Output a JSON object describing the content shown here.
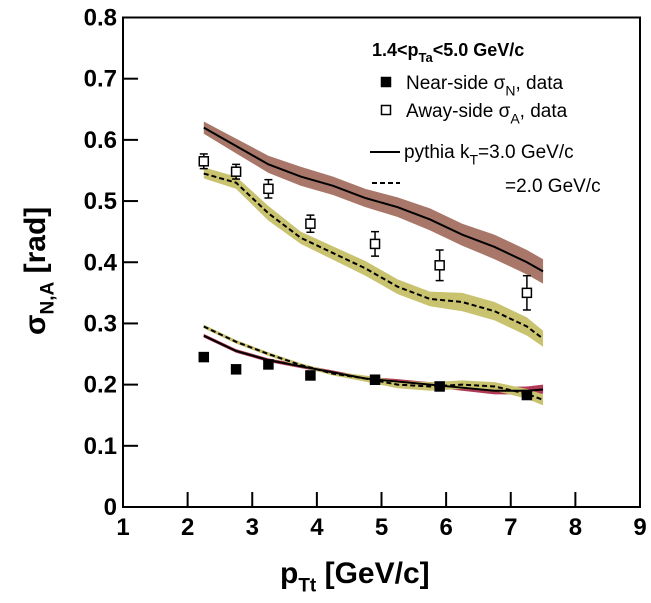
{
  "chart_data": {
    "type": "scatter",
    "x_title": [
      "p",
      "Tt",
      "  [GeV/c]"
    ],
    "y_title": [
      "σ",
      "N,A",
      "   [rad]"
    ],
    "xlim": [
      1,
      9
    ],
    "xticks": [
      1,
      2,
      3,
      4,
      5,
      6,
      7,
      8,
      9
    ],
    "ylim": [
      0,
      0.8
    ],
    "yticks": [
      0,
      0.1,
      0.2,
      0.3,
      0.4,
      0.5,
      0.6,
      0.7,
      0.8
    ],
    "legend_title": [
      "1.4<p",
      "Ta",
      "<5.0 GeV/c"
    ],
    "series": [
      {
        "name": [
          "Near-side  σ",
          "N",
          ", data"
        ],
        "marker": "filled-square",
        "color": "#000000",
        "x": [
          2.25,
          2.75,
          3.25,
          3.9,
          4.9,
          5.9,
          7.25
        ],
        "values": [
          0.245,
          0.225,
          0.233,
          0.215,
          0.208,
          0.197,
          0.183
        ]
      },
      {
        "name": [
          "Away-side  σ",
          "A",
          ", data"
        ],
        "marker": "open-square",
        "color": "#000000",
        "x": [
          2.25,
          2.75,
          3.25,
          3.9,
          4.9,
          5.9,
          7.25
        ],
        "values": [
          0.565,
          0.548,
          0.52,
          0.463,
          0.43,
          0.395,
          0.35
        ],
        "errors": [
          0.012,
          0.012,
          0.015,
          0.014,
          0.02,
          0.025,
          0.028
        ]
      }
    ],
    "model_legend": [
      {
        "name": [
          "pythia k",
          "T",
          "=3.0 GeV/c"
        ],
        "style": "solid"
      },
      {
        "name": [
          "=2.0 GeV/c"
        ],
        "style": "dashed"
      }
    ],
    "model_x": [
      2.25,
      2.75,
      3.25,
      3.75,
      4.25,
      4.75,
      5.25,
      5.75,
      6.25,
      6.75,
      7.25,
      7.5
    ],
    "models": [
      {
        "style": "solid",
        "band_color": "#a8776a",
        "values": [
          0.62,
          0.59,
          0.56,
          0.54,
          0.525,
          0.505,
          0.49,
          0.47,
          0.445,
          0.425,
          0.4,
          0.385
        ],
        "lower": [
          0.61,
          0.578,
          0.546,
          0.525,
          0.51,
          0.49,
          0.474,
          0.452,
          0.427,
          0.405,
          0.38,
          0.365
        ],
        "upper": [
          0.63,
          0.602,
          0.574,
          0.556,
          0.54,
          0.52,
          0.506,
          0.488,
          0.463,
          0.445,
          0.42,
          0.405
        ]
      },
      {
        "style": "dashed",
        "band_color": "#c9c26e",
        "values": [
          0.545,
          0.53,
          0.48,
          0.44,
          0.415,
          0.39,
          0.36,
          0.34,
          0.335,
          0.32,
          0.295,
          0.275
        ],
        "lower": [
          0.537,
          0.52,
          0.468,
          0.43,
          0.404,
          0.378,
          0.348,
          0.328,
          0.32,
          0.305,
          0.28,
          0.262
        ],
        "upper": [
          0.555,
          0.54,
          0.492,
          0.45,
          0.426,
          0.402,
          0.372,
          0.352,
          0.35,
          0.335,
          0.31,
          0.288
        ]
      },
      {
        "style": "solid",
        "band_color": "#b03a55",
        "values": [
          0.28,
          0.255,
          0.24,
          0.23,
          0.22,
          0.21,
          0.205,
          0.2,
          0.195,
          0.19,
          0.19,
          0.192
        ],
        "lower": [
          0.277,
          0.252,
          0.237,
          0.227,
          0.217,
          0.207,
          0.2,
          0.196,
          0.19,
          0.184,
          0.184,
          0.185
        ],
        "upper": [
          0.283,
          0.258,
          0.243,
          0.233,
          0.223,
          0.213,
          0.209,
          0.204,
          0.2,
          0.196,
          0.197,
          0.2
        ]
      },
      {
        "style": "dashed",
        "band_color": "#c9c26e",
        "values": [
          0.295,
          0.27,
          0.25,
          0.232,
          0.218,
          0.21,
          0.2,
          0.197,
          0.2,
          0.197,
          0.185,
          0.175
        ],
        "lower": [
          0.292,
          0.267,
          0.247,
          0.229,
          0.215,
          0.205,
          0.194,
          0.19,
          0.193,
          0.19,
          0.177,
          0.166
        ],
        "upper": [
          0.298,
          0.273,
          0.253,
          0.235,
          0.221,
          0.215,
          0.206,
          0.204,
          0.207,
          0.204,
          0.193,
          0.184
        ]
      }
    ]
  }
}
